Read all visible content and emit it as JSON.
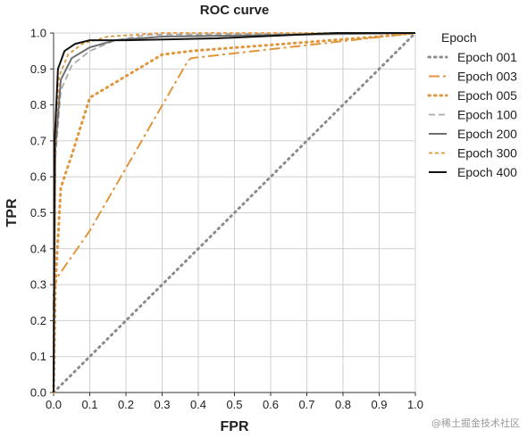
{
  "chart_data": {
    "type": "line",
    "title": "ROC curve",
    "xlabel": "FPR",
    "ylabel": "TPR",
    "xlim": [
      0,
      1
    ],
    "ylim": [
      0,
      1
    ],
    "x_ticks": [
      "0.0",
      "0.1",
      "0.2",
      "0.3",
      "0.4",
      "0.5",
      "0.6",
      "0.7",
      "0.8",
      "0.9",
      "1.0"
    ],
    "y_ticks": [
      "0.0",
      "0.1",
      "0.2",
      "0.3",
      "0.4",
      "0.5",
      "0.6",
      "0.7",
      "0.8",
      "0.9",
      "1.0"
    ],
    "grid": true,
    "legend_title": "Epoch",
    "legend_position": "right",
    "series": [
      {
        "name": "Epoch 001",
        "color": "#8c8c8c",
        "style": "dotted",
        "x": [
          0,
          1
        ],
        "y": [
          0,
          1
        ]
      },
      {
        "name": "Epoch 003",
        "color": "#e0963c",
        "style": "dash-dot",
        "x": [
          0,
          0.0,
          0.01,
          0.1,
          0.37,
          0.38,
          1.0
        ],
        "y": [
          0,
          0.28,
          0.32,
          0.45,
          0.92,
          0.93,
          1.0
        ]
      },
      {
        "name": "Epoch 005",
        "color": "#e0963c",
        "style": "dotted",
        "x": [
          0,
          0.005,
          0.02,
          0.05,
          0.1,
          0.3,
          0.38,
          0.9,
          1.0
        ],
        "y": [
          0,
          0.3,
          0.57,
          0.66,
          0.82,
          0.94,
          0.95,
          0.99,
          1.0
        ]
      },
      {
        "name": "Epoch 100",
        "color": "#aaaaaa",
        "style": "dashed",
        "x": [
          0,
          0.005,
          0.02,
          0.05,
          0.1,
          0.17,
          0.26,
          1.0
        ],
        "y": [
          0,
          0.65,
          0.84,
          0.91,
          0.95,
          0.98,
          0.995,
          1.0
        ]
      },
      {
        "name": "Epoch 200",
        "color": "#6e6e6e",
        "style": "solid",
        "x": [
          0,
          0.005,
          0.02,
          0.05,
          0.1,
          0.17,
          0.3,
          1.0
        ],
        "y": [
          0,
          0.68,
          0.87,
          0.93,
          0.96,
          0.98,
          0.99,
          1.0
        ]
      },
      {
        "name": "Epoch 300",
        "color": "#e0963c",
        "style": "short-dash",
        "x": [
          0,
          0.005,
          0.015,
          0.04,
          0.08,
          0.15,
          0.3,
          1.0
        ],
        "y": [
          0,
          0.72,
          0.88,
          0.94,
          0.97,
          0.99,
          1.0,
          1.0
        ]
      },
      {
        "name": "Epoch 400",
        "color": "#111111",
        "style": "solid",
        "x": [
          0,
          0.003,
          0.012,
          0.03,
          0.06,
          0.1,
          0.2,
          0.45,
          0.78,
          1.0
        ],
        "y": [
          0,
          0.7,
          0.9,
          0.95,
          0.97,
          0.98,
          0.98,
          0.985,
          1.0,
          1.0
        ]
      }
    ]
  },
  "watermark": "@稀土掘金技术社区"
}
